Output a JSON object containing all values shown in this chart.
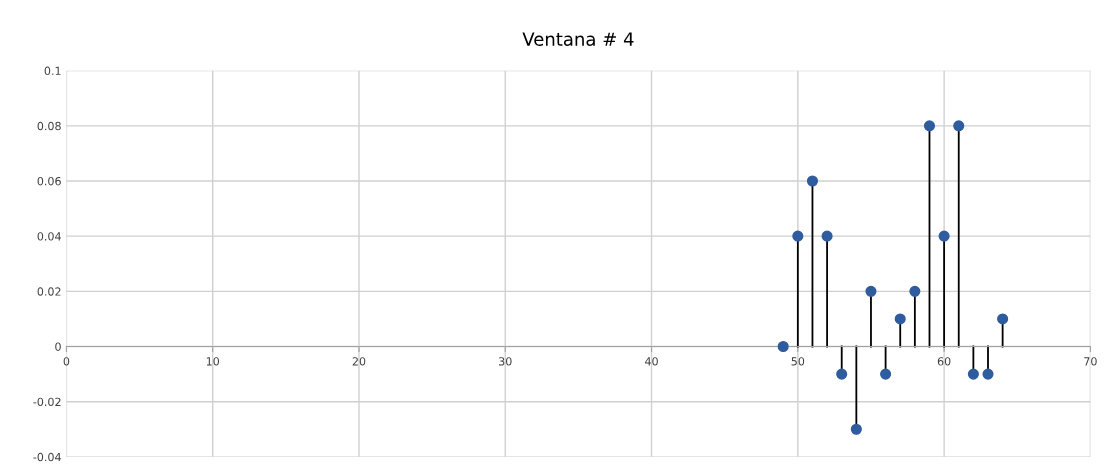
{
  "chart_data": {
    "type": "lollipop",
    "title": "Ventana # 4",
    "x": [
      49,
      50,
      51,
      52,
      53,
      54,
      55,
      56,
      57,
      58,
      59,
      60,
      61,
      62,
      63,
      64
    ],
    "series": [
      {
        "color": "#2e5c9e",
        "values": [
          0,
          0.04,
          0.06,
          0.04,
          -0.01,
          -0.03,
          0.02,
          -0.01,
          0.01,
          0.02,
          0.08,
          0.04,
          0.08,
          -0.01,
          -0.01,
          0.01
        ]
      }
    ],
    "xlim": [
      0,
      70
    ],
    "xticks": [
      0,
      10,
      20,
      30,
      40,
      50,
      60,
      70
    ],
    "ylim": [
      -0.04,
      0.1
    ],
    "yticks": [
      {
        "value": -0.04,
        "label": "-0.04"
      },
      {
        "value": -0.02,
        "label": "-0.02"
      },
      0,
      {
        "value": 0.02,
        "label": "0.02"
      },
      {
        "value": 0.04,
        "label": "0.04"
      },
      {
        "value": 0.06,
        "label": "0.06"
      },
      {
        "value": 0.08,
        "label": "0.08"
      },
      {
        "value": 0.1,
        "label": "0.1"
      }
    ],
    "grid": true,
    "marker": "circle"
  }
}
